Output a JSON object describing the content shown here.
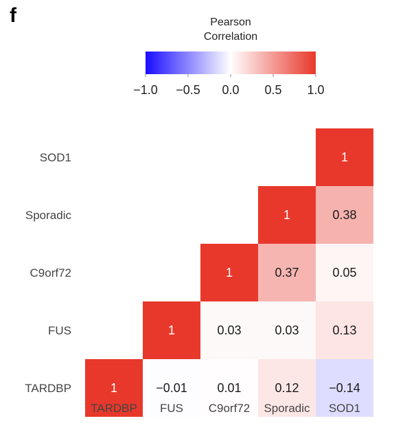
{
  "panel_label": "f",
  "colors": {
    "negative": "#1a0dff",
    "neutral": "#ffffff",
    "positive": "#e8382b",
    "text_dark": "#1a1a1a",
    "text_light": "#ffffff"
  },
  "chart_data": {
    "type": "heatmap",
    "layout": "lower-triangle correlation matrix",
    "rows": [
      "SOD1",
      "Sporadic",
      "C9orf72",
      "FUS",
      "TARDBP"
    ],
    "columns": [
      "TARDBP",
      "FUS",
      "C9orf72",
      "Sporadic",
      "SOD1"
    ],
    "cells": [
      {
        "row": "SOD1",
        "col": "SOD1",
        "value": 1,
        "label": "1"
      },
      {
        "row": "Sporadic",
        "col": "Sporadic",
        "value": 1,
        "label": "1"
      },
      {
        "row": "Sporadic",
        "col": "SOD1",
        "value": 0.38,
        "label": "0.38"
      },
      {
        "row": "C9orf72",
        "col": "C9orf72",
        "value": 1,
        "label": "1"
      },
      {
        "row": "C9orf72",
        "col": "Sporadic",
        "value": 0.37,
        "label": "0.37"
      },
      {
        "row": "C9orf72",
        "col": "SOD1",
        "value": 0.05,
        "label": "0.05"
      },
      {
        "row": "FUS",
        "col": "FUS",
        "value": 1,
        "label": "1"
      },
      {
        "row": "FUS",
        "col": "C9orf72",
        "value": 0.03,
        "label": "0.03"
      },
      {
        "row": "FUS",
        "col": "Sporadic",
        "value": 0.03,
        "label": "0.03"
      },
      {
        "row": "FUS",
        "col": "SOD1",
        "value": 0.13,
        "label": "0.13"
      },
      {
        "row": "TARDBP",
        "col": "TARDBP",
        "value": 1,
        "label": "1"
      },
      {
        "row": "TARDBP",
        "col": "FUS",
        "value": -0.01,
        "label": "−0.01"
      },
      {
        "row": "TARDBP",
        "col": "C9orf72",
        "value": 0.01,
        "label": "0.01"
      },
      {
        "row": "TARDBP",
        "col": "Sporadic",
        "value": 0.12,
        "label": "0.12"
      },
      {
        "row": "TARDBP",
        "col": "SOD1",
        "value": -0.14,
        "label": "−0.14"
      }
    ],
    "legend": {
      "title_lines": [
        "Pearson",
        "Correlation"
      ],
      "range": [
        -1.0,
        1.0
      ],
      "ticks": [
        -1.0,
        -0.5,
        0.0,
        0.5,
        1.0
      ],
      "tick_labels": [
        "−1.0",
        "−0.5",
        "0.0",
        "0.5",
        "1.0"
      ],
      "placement": "top-center"
    }
  }
}
